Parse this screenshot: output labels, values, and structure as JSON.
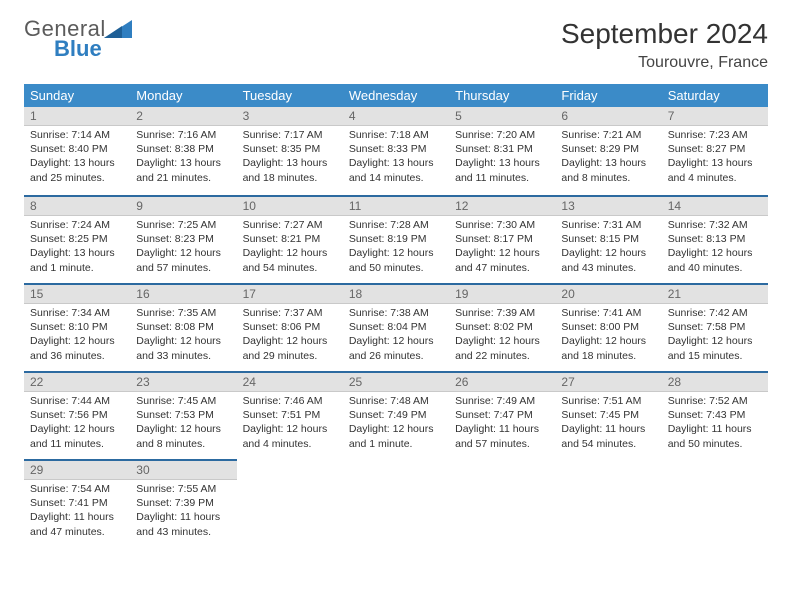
{
  "logo": {
    "line1": "General",
    "line2": "Blue"
  },
  "title": "September 2024",
  "location": "Tourouvre, France",
  "colors": {
    "header_bg": "#3b8bc8",
    "header_fg": "#ffffff",
    "daynum_bg": "#e2e2e2",
    "daynum_fg": "#666666",
    "rule": "#2c6aa0",
    "text": "#333333",
    "logo_gray": "#5b5b5b",
    "logo_blue": "#2f7ec0"
  },
  "weekdays": [
    "Sunday",
    "Monday",
    "Tuesday",
    "Wednesday",
    "Thursday",
    "Friday",
    "Saturday"
  ],
  "weeks": [
    [
      {
        "n": "1",
        "sr": "Sunrise: 7:14 AM",
        "ss": "Sunset: 8:40 PM",
        "dl1": "Daylight: 13 hours",
        "dl2": "and 25 minutes."
      },
      {
        "n": "2",
        "sr": "Sunrise: 7:16 AM",
        "ss": "Sunset: 8:38 PM",
        "dl1": "Daylight: 13 hours",
        "dl2": "and 21 minutes."
      },
      {
        "n": "3",
        "sr": "Sunrise: 7:17 AM",
        "ss": "Sunset: 8:35 PM",
        "dl1": "Daylight: 13 hours",
        "dl2": "and 18 minutes."
      },
      {
        "n": "4",
        "sr": "Sunrise: 7:18 AM",
        "ss": "Sunset: 8:33 PM",
        "dl1": "Daylight: 13 hours",
        "dl2": "and 14 minutes."
      },
      {
        "n": "5",
        "sr": "Sunrise: 7:20 AM",
        "ss": "Sunset: 8:31 PM",
        "dl1": "Daylight: 13 hours",
        "dl2": "and 11 minutes."
      },
      {
        "n": "6",
        "sr": "Sunrise: 7:21 AM",
        "ss": "Sunset: 8:29 PM",
        "dl1": "Daylight: 13 hours",
        "dl2": "and 8 minutes."
      },
      {
        "n": "7",
        "sr": "Sunrise: 7:23 AM",
        "ss": "Sunset: 8:27 PM",
        "dl1": "Daylight: 13 hours",
        "dl2": "and 4 minutes."
      }
    ],
    [
      {
        "n": "8",
        "sr": "Sunrise: 7:24 AM",
        "ss": "Sunset: 8:25 PM",
        "dl1": "Daylight: 13 hours",
        "dl2": "and 1 minute."
      },
      {
        "n": "9",
        "sr": "Sunrise: 7:25 AM",
        "ss": "Sunset: 8:23 PM",
        "dl1": "Daylight: 12 hours",
        "dl2": "and 57 minutes."
      },
      {
        "n": "10",
        "sr": "Sunrise: 7:27 AM",
        "ss": "Sunset: 8:21 PM",
        "dl1": "Daylight: 12 hours",
        "dl2": "and 54 minutes."
      },
      {
        "n": "11",
        "sr": "Sunrise: 7:28 AM",
        "ss": "Sunset: 8:19 PM",
        "dl1": "Daylight: 12 hours",
        "dl2": "and 50 minutes."
      },
      {
        "n": "12",
        "sr": "Sunrise: 7:30 AM",
        "ss": "Sunset: 8:17 PM",
        "dl1": "Daylight: 12 hours",
        "dl2": "and 47 minutes."
      },
      {
        "n": "13",
        "sr": "Sunrise: 7:31 AM",
        "ss": "Sunset: 8:15 PM",
        "dl1": "Daylight: 12 hours",
        "dl2": "and 43 minutes."
      },
      {
        "n": "14",
        "sr": "Sunrise: 7:32 AM",
        "ss": "Sunset: 8:13 PM",
        "dl1": "Daylight: 12 hours",
        "dl2": "and 40 minutes."
      }
    ],
    [
      {
        "n": "15",
        "sr": "Sunrise: 7:34 AM",
        "ss": "Sunset: 8:10 PM",
        "dl1": "Daylight: 12 hours",
        "dl2": "and 36 minutes."
      },
      {
        "n": "16",
        "sr": "Sunrise: 7:35 AM",
        "ss": "Sunset: 8:08 PM",
        "dl1": "Daylight: 12 hours",
        "dl2": "and 33 minutes."
      },
      {
        "n": "17",
        "sr": "Sunrise: 7:37 AM",
        "ss": "Sunset: 8:06 PM",
        "dl1": "Daylight: 12 hours",
        "dl2": "and 29 minutes."
      },
      {
        "n": "18",
        "sr": "Sunrise: 7:38 AM",
        "ss": "Sunset: 8:04 PM",
        "dl1": "Daylight: 12 hours",
        "dl2": "and 26 minutes."
      },
      {
        "n": "19",
        "sr": "Sunrise: 7:39 AM",
        "ss": "Sunset: 8:02 PM",
        "dl1": "Daylight: 12 hours",
        "dl2": "and 22 minutes."
      },
      {
        "n": "20",
        "sr": "Sunrise: 7:41 AM",
        "ss": "Sunset: 8:00 PM",
        "dl1": "Daylight: 12 hours",
        "dl2": "and 18 minutes."
      },
      {
        "n": "21",
        "sr": "Sunrise: 7:42 AM",
        "ss": "Sunset: 7:58 PM",
        "dl1": "Daylight: 12 hours",
        "dl2": "and 15 minutes."
      }
    ],
    [
      {
        "n": "22",
        "sr": "Sunrise: 7:44 AM",
        "ss": "Sunset: 7:56 PM",
        "dl1": "Daylight: 12 hours",
        "dl2": "and 11 minutes."
      },
      {
        "n": "23",
        "sr": "Sunrise: 7:45 AM",
        "ss": "Sunset: 7:53 PM",
        "dl1": "Daylight: 12 hours",
        "dl2": "and 8 minutes."
      },
      {
        "n": "24",
        "sr": "Sunrise: 7:46 AM",
        "ss": "Sunset: 7:51 PM",
        "dl1": "Daylight: 12 hours",
        "dl2": "and 4 minutes."
      },
      {
        "n": "25",
        "sr": "Sunrise: 7:48 AM",
        "ss": "Sunset: 7:49 PM",
        "dl1": "Daylight: 12 hours",
        "dl2": "and 1 minute."
      },
      {
        "n": "26",
        "sr": "Sunrise: 7:49 AM",
        "ss": "Sunset: 7:47 PM",
        "dl1": "Daylight: 11 hours",
        "dl2": "and 57 minutes."
      },
      {
        "n": "27",
        "sr": "Sunrise: 7:51 AM",
        "ss": "Sunset: 7:45 PM",
        "dl1": "Daylight: 11 hours",
        "dl2": "and 54 minutes."
      },
      {
        "n": "28",
        "sr": "Sunrise: 7:52 AM",
        "ss": "Sunset: 7:43 PM",
        "dl1": "Daylight: 11 hours",
        "dl2": "and 50 minutes."
      }
    ],
    [
      {
        "n": "29",
        "sr": "Sunrise: 7:54 AM",
        "ss": "Sunset: 7:41 PM",
        "dl1": "Daylight: 11 hours",
        "dl2": "and 47 minutes."
      },
      {
        "n": "30",
        "sr": "Sunrise: 7:55 AM",
        "ss": "Sunset: 7:39 PM",
        "dl1": "Daylight: 11 hours",
        "dl2": "and 43 minutes."
      },
      null,
      null,
      null,
      null,
      null
    ]
  ]
}
